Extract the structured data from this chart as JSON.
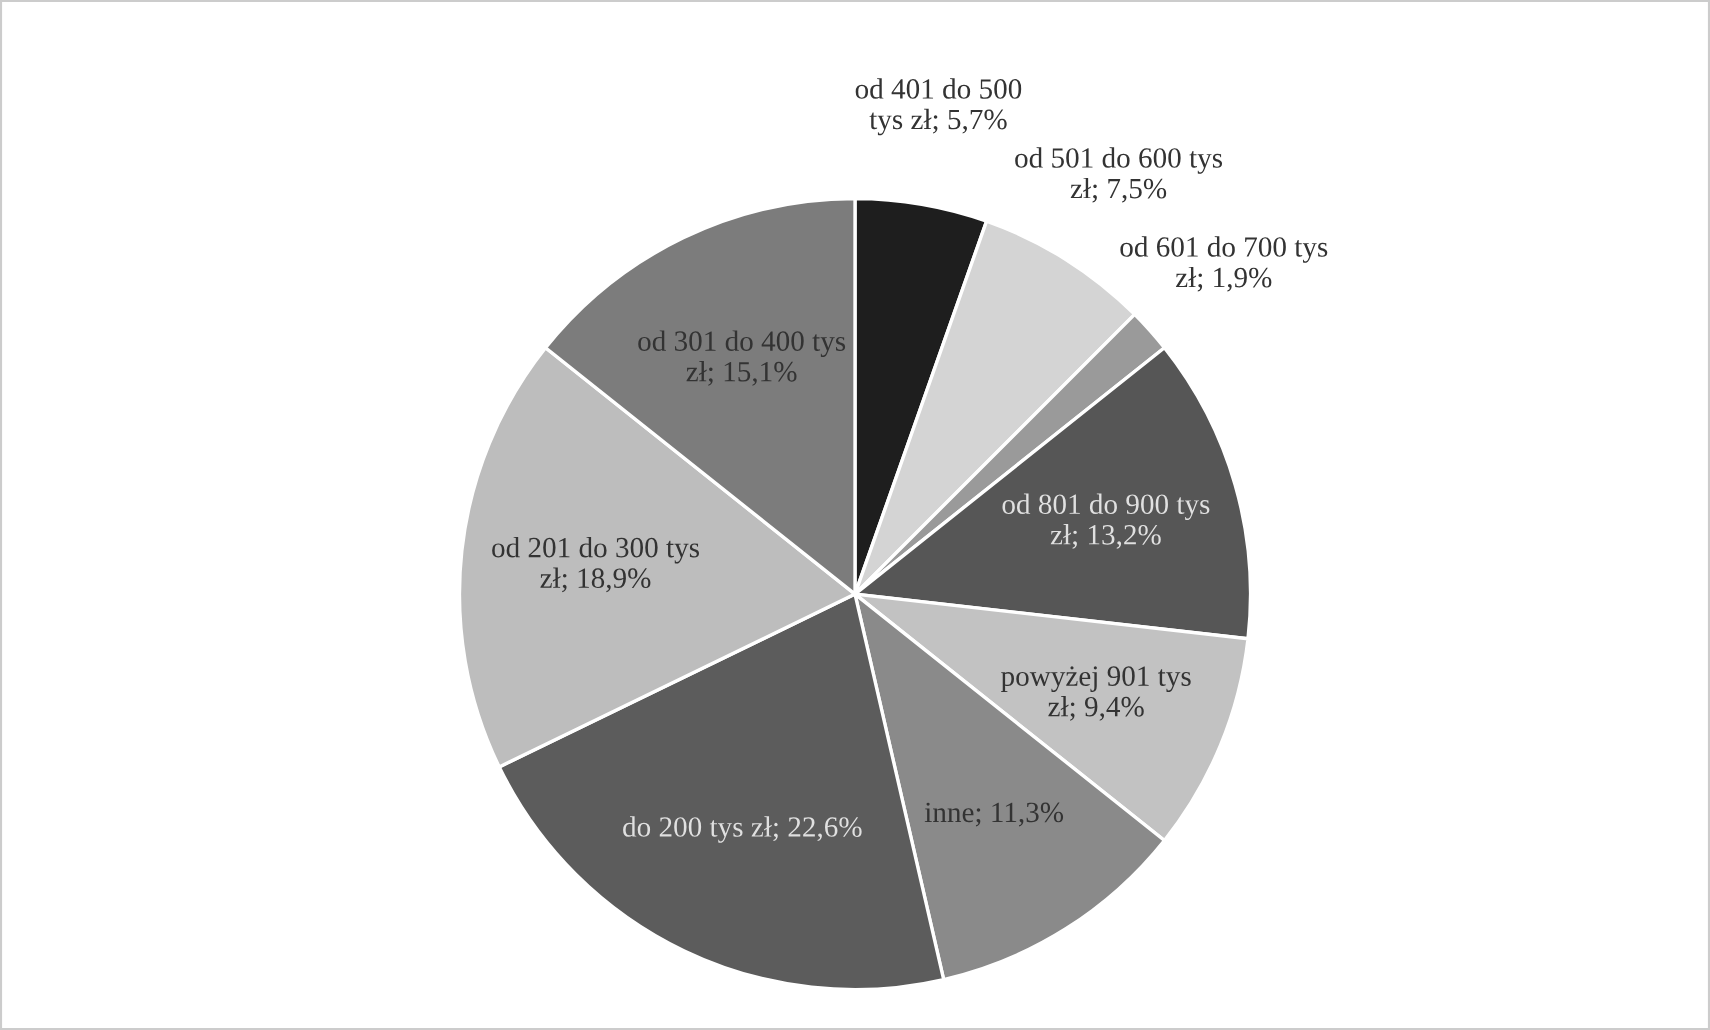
{
  "chart_data": {
    "type": "pie",
    "categories": [
      "od 401 do 500\ntys zł",
      "od 501 do 600 tys\nzł",
      "od 601 do 700 tys\nzł",
      "od 801 do 900 tys\nzł",
      "powyżej 901 tys\nzł",
      "inne",
      "do 200 tys zł",
      "od 201 do 300 tys\nzł",
      "od 301 do 400 tys\nzł"
    ],
    "values": [
      5.7,
      7.5,
      1.9,
      13.2,
      9.4,
      11.3,
      22.6,
      18.9,
      15.1
    ],
    "value_labels": [
      "5,7%",
      "7,5%",
      "1,9%",
      "13,2%",
      "9,4%",
      "11,3%",
      "22,6%",
      "18,9%",
      "15,1%"
    ],
    "colors": [
      "#1e1e1e",
      "#d4d4d4",
      "#9a9a9a",
      "#565656",
      "#c2c2c2",
      "#8a8a8a",
      "#5c5c5c",
      "#bdbdbd",
      "#7c7c7c"
    ],
    "legend": false
  }
}
